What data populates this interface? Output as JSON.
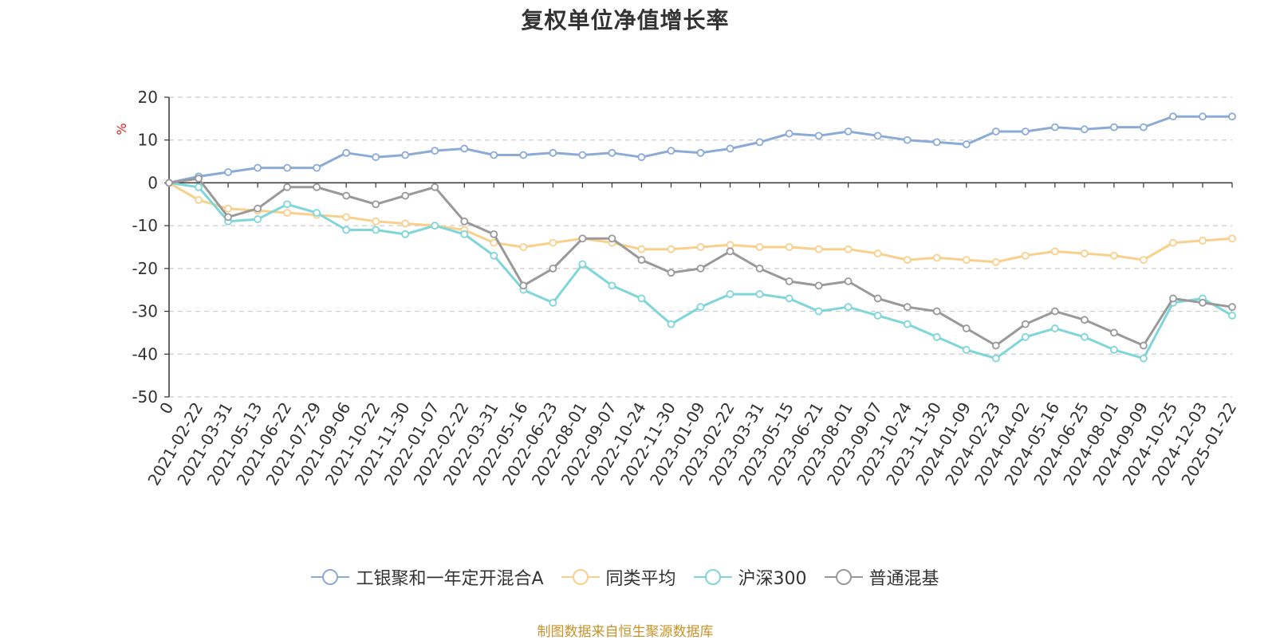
{
  "chart_data": {
    "type": "line",
    "title": "复权单位净值增长率",
    "ylabel": "%",
    "ylim": [
      -50,
      20
    ],
    "yticks": [
      20,
      10,
      0,
      -10,
      -20,
      -30,
      -40,
      -50
    ],
    "x": [
      "0",
      "2021-02-22",
      "2021-03-31",
      "2021-05-13",
      "2021-06-22",
      "2021-07-29",
      "2021-09-06",
      "2021-10-22",
      "2021-11-30",
      "2022-01-07",
      "2022-02-22",
      "2022-03-31",
      "2022-05-16",
      "2022-06-23",
      "2022-08-01",
      "2022-09-07",
      "2022-10-24",
      "2022-11-30",
      "2023-01-09",
      "2023-02-22",
      "2023-03-31",
      "2023-05-15",
      "2023-06-21",
      "2023-08-01",
      "2023-09-07",
      "2023-10-24",
      "2023-11-30",
      "2024-01-09",
      "2024-02-23",
      "2024-04-02",
      "2024-05-16",
      "2024-06-25",
      "2024-08-01",
      "2024-09-09",
      "2024-10-25",
      "2024-12-03",
      "2025-01-22"
    ],
    "grid": true,
    "legend_position": "bottom",
    "series": [
      {
        "name": "工银聚和一年定开混合A",
        "color": "#8baad6",
        "values": [
          0,
          1.5,
          2.5,
          3.5,
          3.5,
          3.5,
          7,
          6,
          6.5,
          7.5,
          8,
          6.5,
          6.5,
          7,
          6.5,
          7,
          6,
          7.5,
          7,
          8,
          9.5,
          11.5,
          11,
          12,
          11,
          10,
          9.5,
          9,
          12,
          12,
          13,
          12.5,
          13,
          13,
          15.5,
          15.5,
          15.5
        ]
      },
      {
        "name": "同类平均",
        "color": "#f8d08c",
        "values": [
          0,
          -4,
          -6,
          -6.5,
          -7,
          -7.5,
          -8,
          -9,
          -9.5,
          -10,
          -11,
          -14,
          -15,
          -14,
          -13,
          -14,
          -15.5,
          -15.5,
          -15,
          -14.5,
          -15,
          -15,
          -15.5,
          -15.5,
          -16.5,
          -18,
          -17.5,
          -18,
          -18.5,
          -17,
          -16,
          -16.5,
          -17,
          -18,
          -14,
          -13.5,
          -13
        ]
      },
      {
        "name": "沪深300",
        "color": "#7fd6d9",
        "values": [
          0,
          -1,
          -9,
          -8.5,
          -5,
          -7,
          -11,
          -11,
          -12,
          -10,
          -12,
          -17,
          -25,
          -28,
          -19,
          -24,
          -27,
          -33,
          -29,
          -26,
          -26,
          -27,
          -30,
          -29,
          -31,
          -33,
          -36,
          -39,
          -41,
          -36,
          -34,
          -36,
          -39,
          -41,
          -28,
          -27,
          -31
        ]
      },
      {
        "name": "普通混基",
        "color": "#999999",
        "values": [
          0,
          1,
          -8,
          -6,
          -1,
          -1,
          -3,
          -5,
          -3,
          -1,
          -9,
          -12,
          -24,
          -20,
          -13,
          -13,
          -18,
          -21,
          -20,
          -16,
          -20,
          -23,
          -24,
          -23,
          -27,
          -29,
          -30,
          -34,
          -38,
          -33,
          -30,
          -32,
          -35,
          -38,
          -27,
          -28,
          -29
        ]
      }
    ]
  },
  "source_text": "制图数据来自恒生聚源数据库"
}
